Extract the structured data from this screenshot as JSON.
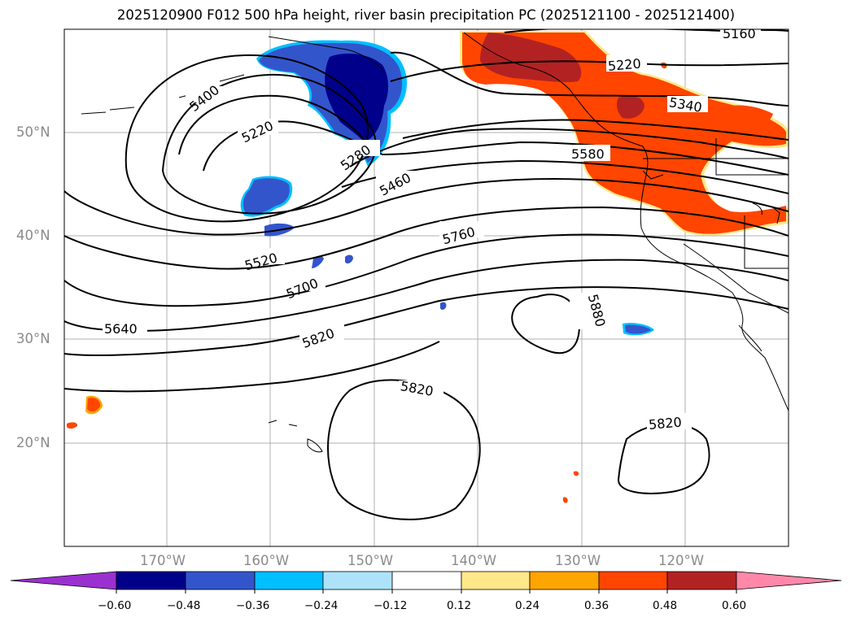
{
  "title": "2025120900 F012 500 hPa height, river basin precipitation PC (2025121100 - 2025121400)",
  "lat_labels": [
    "50°N",
    "40°N",
    "30°N",
    "20°N"
  ],
  "lon_labels": [
    "170°W",
    "160°W",
    "150°W",
    "140°W",
    "130°W",
    "120°W"
  ],
  "contour_labels": [
    "5160",
    "5220",
    "5340",
    "5580",
    "5460",
    "5280",
    "5220",
    "5400",
    "5520",
    "5700",
    "5760",
    "5640",
    "5820",
    "5880",
    "5820",
    "5820"
  ],
  "colorbar": {
    "ticks": [
      "−0.60",
      "−0.48",
      "−0.36",
      "−0.24",
      "−0.12",
      "0.12",
      "0.24",
      "0.36",
      "0.48",
      "0.60"
    ],
    "colors": [
      "#9b30d0",
      "#00008b",
      "#3355cc",
      "#00bfff",
      "#ade3fa",
      "#ffffff",
      "#ffe88a",
      "#ffa500",
      "#ff4500",
      "#b22222",
      "#ff88aa"
    ]
  },
  "shading_colors": {
    "negative_strong": "#00008b",
    "negative_mid": "#3355cc",
    "negative_light": "#00bfff",
    "positive_light": "#ffe88a",
    "positive_mid": "#ffa500",
    "positive_strong": "#ff4500",
    "positive_max": "#b22222"
  }
}
